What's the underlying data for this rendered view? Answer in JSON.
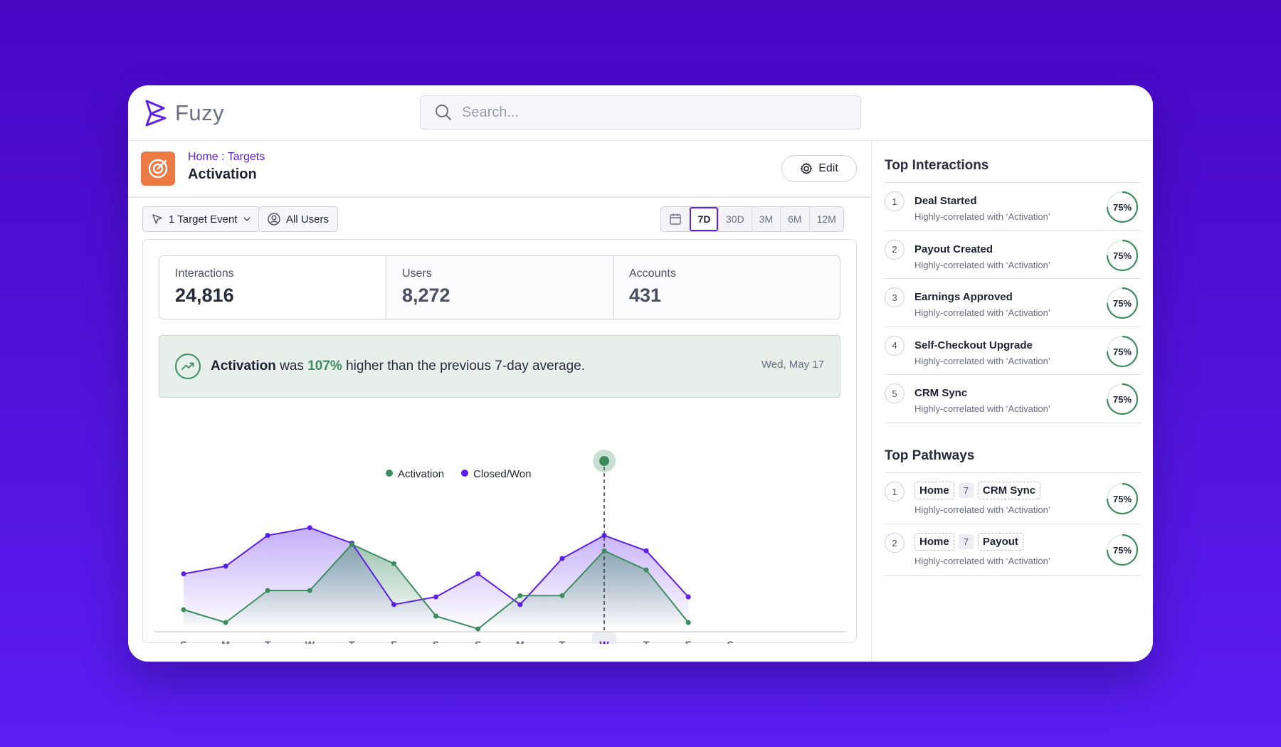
{
  "app": {
    "name": "Fuzy"
  },
  "search": {
    "placeholder": "Search..."
  },
  "header": {
    "breadcrumb": "Home : Targets",
    "title": "Activation",
    "edit_label": "Edit"
  },
  "filters": {
    "target_event": "1 Target Event",
    "users": "All Users",
    "ranges": [
      "7D",
      "30D",
      "3M",
      "6M",
      "12M"
    ],
    "active_range": "7D"
  },
  "stats": [
    {
      "label": "Interactions",
      "value": "24,816"
    },
    {
      "label": "Users",
      "value": "8,272"
    },
    {
      "label": "Accounts",
      "value": "431"
    }
  ],
  "insight": {
    "metric": "Activation",
    "pre": " was ",
    "pct": "107%",
    "post": " higher than the previous 7-day average.",
    "date": "Wed, May 17"
  },
  "chart_data": {
    "type": "line",
    "categories": [
      "S",
      "M",
      "T",
      "W",
      "T",
      "F",
      "S",
      "S",
      "M",
      "T",
      "W",
      "T",
      "F",
      "S"
    ],
    "highlight_index": 10,
    "series": [
      {
        "name": "Activation",
        "color": "#3d8d61",
        "values": [
          15,
          5,
          30,
          30,
          66,
          51,
          10,
          0,
          26,
          26,
          61,
          46,
          5,
          null
        ]
      },
      {
        "name": "Closed/Won",
        "color": "#5b1fe8",
        "values": [
          43,
          49,
          73,
          79,
          67,
          19,
          25,
          43,
          19,
          55,
          73,
          61,
          25,
          null
        ]
      }
    ],
    "ylim": [
      0,
      100
    ],
    "legend": "top-center"
  },
  "top_interactions": {
    "title": "Top Interactions",
    "items": [
      {
        "n": "1",
        "title": "Deal Started",
        "sub": "Highly-correlated with ‘Activation’",
        "pct": "75%",
        "value": 0.75
      },
      {
        "n": "2",
        "title": "Payout Created",
        "sub": "Highly-correlated with ‘Activation’",
        "pct": "75%",
        "value": 0.75
      },
      {
        "n": "3",
        "title": "Earnings Approved",
        "sub": "Highly-correlated with ‘Activation’",
        "pct": "75%",
        "value": 0.75
      },
      {
        "n": "4",
        "title": "Self-Checkout Upgrade",
        "sub": "Highly-correlated with ‘Activation’",
        "pct": "75%",
        "value": 0.75
      },
      {
        "n": "5",
        "title": "CRM Sync",
        "sub": "Highly-correlated with ‘Activation’",
        "pct": "75%",
        "value": 0.75
      }
    ]
  },
  "top_pathways": {
    "title": "Top Pathways",
    "items": [
      {
        "n": "1",
        "from": "Home",
        "steps": "7",
        "to": "CRM Sync",
        "sub": "Highly-correlated with ‘Activation’",
        "pct": "75%",
        "value": 0.75
      },
      {
        "n": "2",
        "from": "Home",
        "steps": "7",
        "to": "Payout",
        "sub": "Highly-correlated with ‘Activation’",
        "pct": "75%",
        "value": 0.75
      }
    ]
  },
  "colors": {
    "brand": "#5b1fe8",
    "positive": "#3d8d61",
    "target_icon": "#ec7a45"
  },
  "icons": [
    "logo-icon",
    "search-icon",
    "target-icon",
    "gear-icon",
    "cursor-icon",
    "chevron-down-icon",
    "user-circle-icon",
    "calendar-icon",
    "trend-up-icon"
  ]
}
